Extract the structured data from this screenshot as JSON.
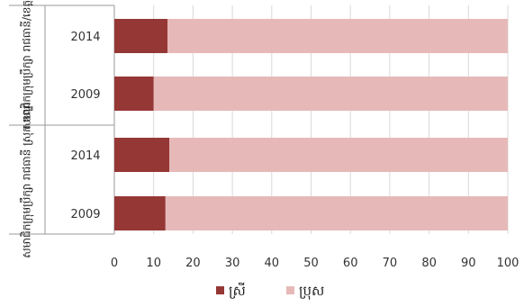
{
  "chart_data": {
    "type": "bar",
    "orientation": "horizontal",
    "stacked": true,
    "xlim": [
      0,
      100
    ],
    "xticks": [
      0,
      10,
      20,
      30,
      40,
      50,
      60,
      70,
      80,
      90,
      100
    ],
    "grid": true,
    "legend_position": "bottom",
    "groups": [
      {
        "label": "សមាជិកក្រុមប្រឹក្សា រាជធានី/ខេត្ត",
        "categories": [
          "2014",
          "2009"
        ]
      },
      {
        "label": "សមាជិកក្រុមប្រឹក្សា រាជធានី ស្រុក ខណ្ឌ",
        "categories": [
          "2014",
          "2009"
        ]
      }
    ],
    "categories": [
      "2014",
      "2009",
      "2014",
      "2009"
    ],
    "series": [
      {
        "name": "ស្រី",
        "color": "#953735",
        "values": [
          13.5,
          10,
          14,
          13
        ]
      },
      {
        "name": "ប្រុស",
        "color": "#e6b9b8",
        "values": [
          86.5,
          90,
          86,
          87
        ]
      }
    ]
  }
}
